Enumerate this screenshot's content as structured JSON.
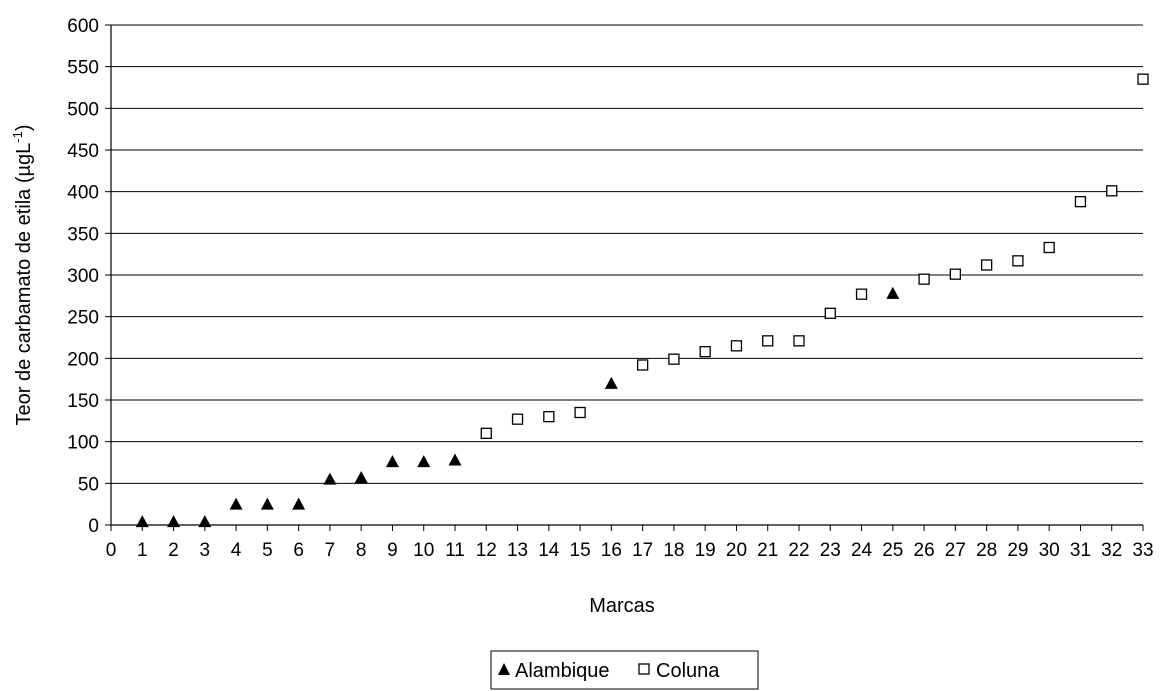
{
  "chart_data": {
    "type": "scatter",
    "title": "",
    "xlabel": "Marcas",
    "ylabel": "Teor de carbamato de etila (µgL",
    "ylabel_superscript": "-1",
    "ylabel_suffix": ")",
    "xlim": [
      0,
      33
    ],
    "ylim": [
      0,
      600
    ],
    "x_ticks": [
      0,
      1,
      2,
      3,
      4,
      5,
      6,
      7,
      8,
      9,
      10,
      11,
      12,
      13,
      14,
      15,
      16,
      17,
      18,
      19,
      20,
      21,
      22,
      23,
      24,
      25,
      26,
      27,
      28,
      29,
      30,
      31,
      32,
      33
    ],
    "y_ticks": [
      0,
      50,
      100,
      150,
      200,
      250,
      300,
      350,
      400,
      450,
      500,
      550,
      600
    ],
    "grid": "horizontal",
    "legend_position": "bottom-center",
    "series": [
      {
        "name": "Alambique",
        "marker": "filled-triangle",
        "color": "#000000",
        "x": [
          1,
          2,
          3,
          4,
          5,
          6,
          7,
          8,
          9,
          10,
          11,
          16,
          25
        ],
        "y": [
          4,
          4,
          4,
          25,
          25,
          25,
          55,
          57,
          76,
          76,
          78,
          170,
          278
        ]
      },
      {
        "name": "Coluna",
        "marker": "open-square",
        "color": "#000000",
        "x": [
          12,
          13,
          14,
          15,
          17,
          18,
          19,
          20,
          21,
          22,
          23,
          24,
          26,
          27,
          28,
          29,
          30,
          31,
          32,
          33
        ],
        "y": [
          110,
          127,
          130,
          135,
          192,
          199,
          208,
          215,
          221,
          221,
          254,
          277,
          295,
          301,
          312,
          317,
          333,
          388,
          401,
          535
        ]
      }
    ]
  }
}
